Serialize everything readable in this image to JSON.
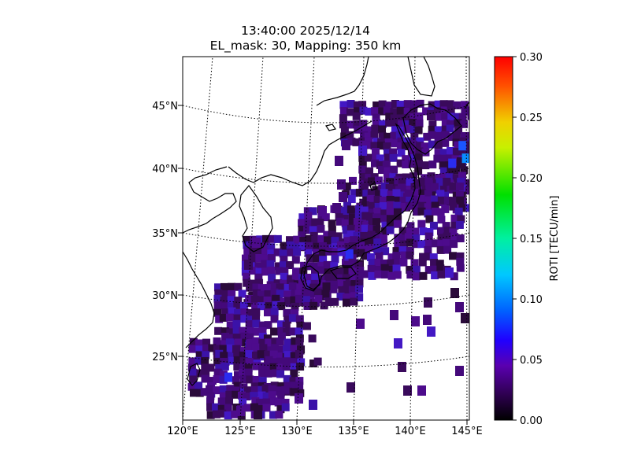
{
  "title": {
    "line1": "13:40:00 2025/12/14",
    "line2": "EL_mask: 30, Mapping: 350 km"
  },
  "map": {
    "lon_range": [
      120,
      145
    ],
    "lat_range": [
      20,
      49
    ],
    "lat_ticks": [
      {
        "value": 45,
        "label": "45°N"
      },
      {
        "value": 40,
        "label": "40°N"
      },
      {
        "value": 35,
        "label": "35°N"
      },
      {
        "value": 30,
        "label": "30°N"
      },
      {
        "value": 25,
        "label": "25°N"
      }
    ],
    "lon_ticks": [
      {
        "value": 120,
        "label": "120°E"
      },
      {
        "value": 125,
        "label": "125°E"
      },
      {
        "value": 130,
        "label": "130°E"
      },
      {
        "value": 135,
        "label": "135°E"
      },
      {
        "value": 140,
        "label": "140°E"
      },
      {
        "value": 145,
        "label": "145°E"
      }
    ],
    "graticule": "dotted",
    "coastline_color": "#000000"
  },
  "colorbar": {
    "label": "ROTI [TECU/min]",
    "min": 0.0,
    "max": 0.3,
    "ticks": [
      "0.00",
      "0.05",
      "0.10",
      "0.15",
      "0.20",
      "0.25",
      "0.30"
    ],
    "colormap": "jet-like (black → purple → blue → cyan → green → yellow → red)"
  },
  "chart_data": {
    "type": "heatmap",
    "description_variable": "ROTI [TECU/min]",
    "typical_value": 0.02,
    "elevated_points": [
      {
        "lon": 144.8,
        "lat": 40.8,
        "value": 0.08
      },
      {
        "lon": 144.5,
        "lat": 41.8,
        "value": 0.07
      },
      {
        "lon": 143.6,
        "lat": 40.4,
        "value": 0.06
      },
      {
        "lon": 134.6,
        "lat": 33.2,
        "value": 0.05
      },
      {
        "lon": 124.0,
        "lat": 23.4,
        "value": 0.05
      }
    ],
    "clim": [
      0.0,
      0.3
    ]
  }
}
